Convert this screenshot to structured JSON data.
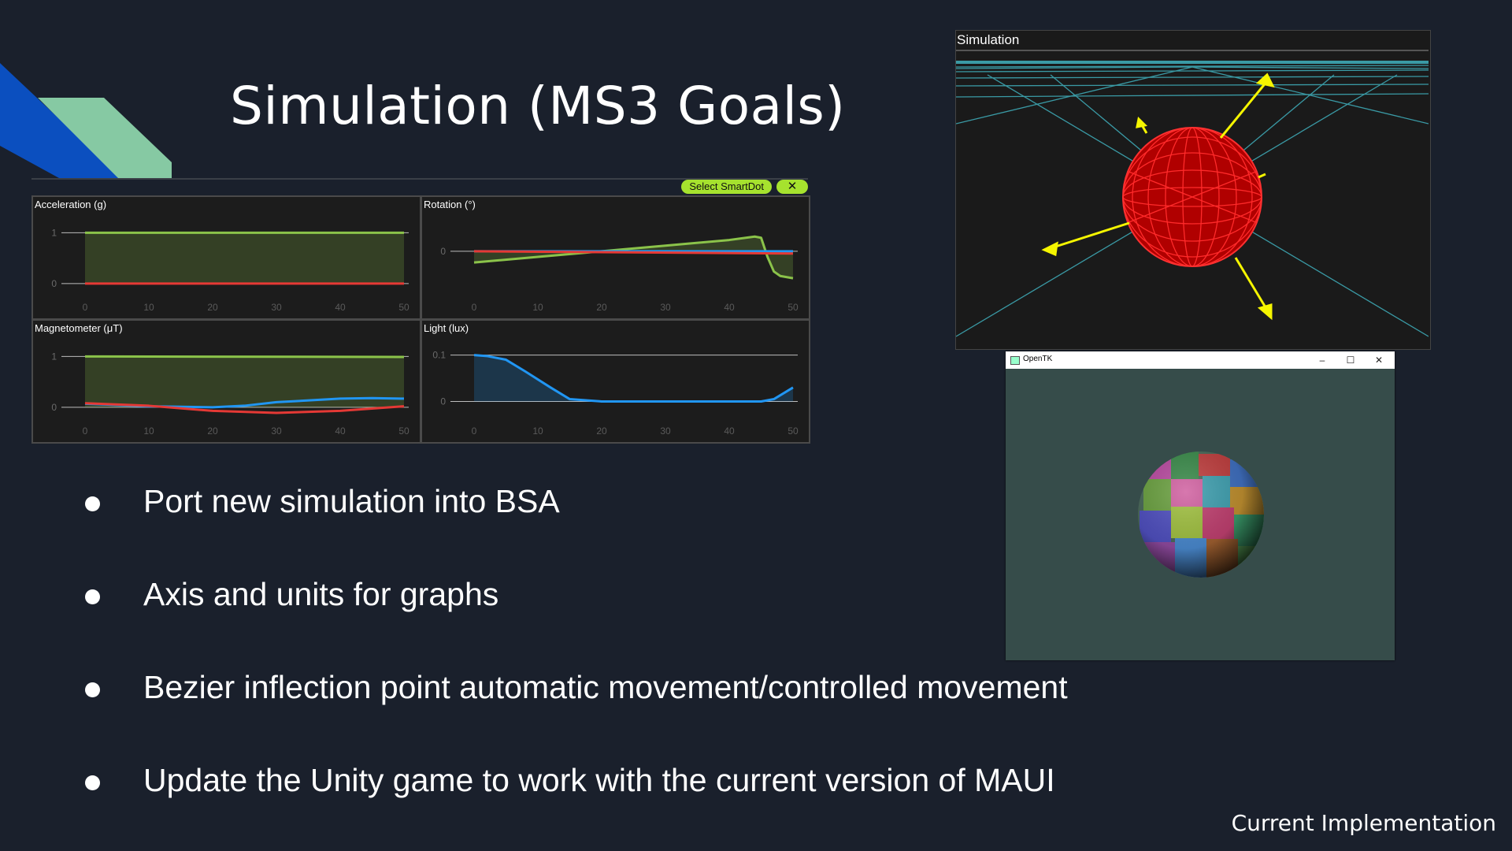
{
  "slide": {
    "title": "Simulation (MS3 Goals)",
    "caption": "Current Implementation",
    "bullets": [
      "Port new simulation into BSA",
      "Axis and units for graphs",
      "Bezier inflection point automatic movement/controlled movement",
      "Update the Unity game to work with the current version of MAUI"
    ]
  },
  "toolbar": {
    "select_label": "Select SmartDot",
    "close_label": "✕"
  },
  "simulation_window": {
    "title": "Simulation",
    "sphere_color": "#e00000",
    "arrow_color": "#f5f500",
    "grid_color": "#3a9aa5"
  },
  "opentk_window": {
    "title": "OpenTK",
    "background": "#364c4a"
  },
  "colors": {
    "background": "#1a202c",
    "accent_blue": "#0b4fbf",
    "accent_green": "#86c9a3",
    "series_green": "#8bc34a",
    "series_red": "#e53935",
    "series_blue": "#2196f3",
    "button_green": "#a6e22e"
  },
  "chart_data": [
    {
      "type": "line",
      "title": "Acceleration (g)",
      "xlim": [
        0,
        50
      ],
      "ylim": [
        -0.25,
        1.3
      ],
      "xticks": [
        0,
        10,
        20,
        30,
        40,
        50
      ],
      "yticks": [
        0,
        1
      ],
      "series": [
        {
          "color": "#8bc34a",
          "fill": true,
          "x": [
            0,
            50
          ],
          "y": [
            1,
            1
          ]
        },
        {
          "color": "#e53935",
          "fill": false,
          "x": [
            0,
            50
          ],
          "y": [
            0,
            0
          ]
        }
      ]
    },
    {
      "type": "line",
      "title": "Rotation (°)",
      "xlim": [
        0,
        50
      ],
      "ylim": [
        -0.4,
        0.3
      ],
      "xticks": [
        0,
        10,
        20,
        30,
        40,
        50
      ],
      "yticks": [
        0
      ],
      "series": [
        {
          "color": "#8bc34a",
          "fill": true,
          "x": [
            0,
            10,
            20,
            30,
            40,
            44,
            45,
            46,
            47,
            48,
            50
          ],
          "y": [
            -0.1,
            -0.05,
            0.0,
            0.05,
            0.1,
            0.13,
            0.12,
            -0.05,
            -0.18,
            -0.22,
            -0.24
          ]
        },
        {
          "color": "#2196f3",
          "fill": false,
          "x": [
            0,
            50
          ],
          "y": [
            0,
            0
          ]
        },
        {
          "color": "#e53935",
          "fill": false,
          "x": [
            0,
            50
          ],
          "y": [
            0,
            -0.02
          ]
        }
      ]
    },
    {
      "type": "line",
      "title": "Magnetometer (μT)",
      "xlim": [
        0,
        50
      ],
      "ylim": [
        -0.25,
        1.3
      ],
      "xticks": [
        0,
        10,
        20,
        30,
        40,
        50
      ],
      "yticks": [
        0,
        1
      ],
      "series": [
        {
          "color": "#8bc34a",
          "fill": true,
          "x": [
            0,
            50
          ],
          "y": [
            1,
            0.99
          ]
        },
        {
          "color": "#2196f3",
          "fill": false,
          "x": [
            0,
            10,
            20,
            25,
            30,
            40,
            45,
            50
          ],
          "y": [
            0.07,
            0.02,
            0.0,
            0.03,
            0.1,
            0.17,
            0.18,
            0.17
          ]
        },
        {
          "color": "#e53935",
          "fill": false,
          "x": [
            0,
            10,
            20,
            30,
            40,
            50
          ],
          "y": [
            0.08,
            0.03,
            -0.07,
            -0.11,
            -0.07,
            0.02
          ]
        }
      ]
    },
    {
      "type": "line",
      "title": "Light (lux)",
      "xlim": [
        0,
        50
      ],
      "ylim": [
        -0.04,
        0.13
      ],
      "xticks": [
        0,
        10,
        20,
        30,
        40,
        50
      ],
      "yticks": [
        0,
        0.1
      ],
      "series": [
        {
          "color": "#2196f3",
          "fill": true,
          "x": [
            0,
            2,
            5,
            8,
            12,
            15,
            20,
            30,
            40,
            45,
            47,
            50
          ],
          "y": [
            0.1,
            0.098,
            0.09,
            0.065,
            0.03,
            0.005,
            0.0,
            0.0,
            0.0,
            0.0,
            0.005,
            0.03
          ]
        }
      ]
    }
  ]
}
